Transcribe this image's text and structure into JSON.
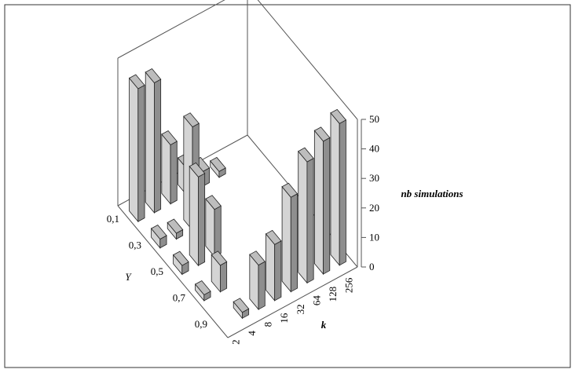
{
  "chart_data": {
    "type": "bar3d",
    "x_label": "k",
    "y_label": "Y",
    "z_label": "nb simulations",
    "categories": [
      "2",
      "4",
      "8",
      "16",
      "32",
      "64",
      "128",
      "256"
    ],
    "series": [
      {
        "name": "0,1",
        "values": [
          45,
          44,
          20,
          9,
          5,
          2,
          null,
          null
        ]
      },
      {
        "name": "0,3",
        "values": [
          3,
          2,
          35,
          null,
          null,
          null,
          null,
          null
        ]
      },
      {
        "name": "0,5",
        "values": [
          3,
          30,
          16,
          null,
          null,
          null,
          null,
          null
        ]
      },
      {
        "name": "0,7",
        "values": [
          2,
          9,
          null,
          null,
          null,
          null,
          null,
          null
        ]
      },
      {
        "name": "0,9",
        "values": [
          null,
          2,
          15,
          19,
          32,
          41,
          45,
          48
        ]
      }
    ],
    "color": "#bdbdbd",
    "zlim": [
      0,
      50
    ],
    "zticks": [
      0,
      10,
      20,
      30,
      40,
      50
    ]
  }
}
